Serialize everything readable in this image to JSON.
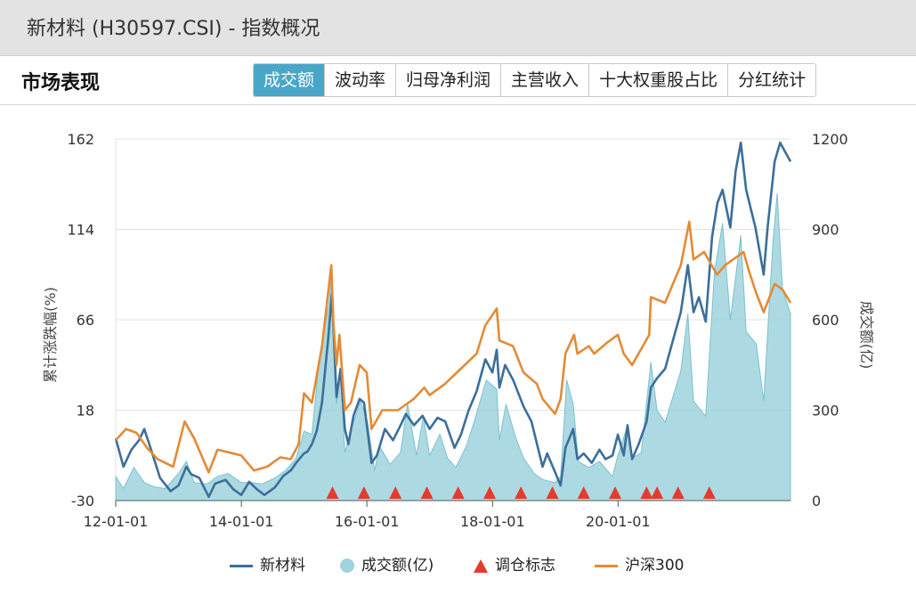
{
  "header": {
    "title": "新材料 (H30597.CSI) - 指数概况"
  },
  "section": {
    "title": "市场表现",
    "tabs": [
      {
        "label": "成交额",
        "active": true
      },
      {
        "label": "波动率",
        "active": false
      },
      {
        "label": "归母净利润",
        "active": false
      },
      {
        "label": "主营收入",
        "active": false
      },
      {
        "label": "十大权重股占比",
        "active": false
      },
      {
        "label": "分红统计",
        "active": false
      }
    ]
  },
  "colors": {
    "index": "#3b6f9a",
    "hs300": "#e38b36",
    "volume": "#9fd3dd",
    "volume_line": "#7cc0cf",
    "marker": "#e33b2d",
    "active_tab": "#4aa6c8"
  },
  "chart_data": {
    "type": "line",
    "x_range": [
      "2012-01-01",
      "2022-09-30"
    ],
    "x_ticks": [
      "12-01-01",
      "14-01-01",
      "16-01-01",
      "18-01-01",
      "20-01-01"
    ],
    "y_left": {
      "label": "累计涨跌幅(%)",
      "ticks": [
        -30,
        18,
        66,
        114,
        162
      ],
      "range": [
        -30,
        162
      ]
    },
    "y_right": {
      "label": "成交额(亿)",
      "ticks": [
        0,
        300,
        600,
        900,
        1200
      ],
      "range": [
        0,
        1200
      ]
    },
    "series": [
      {
        "name": "新材料",
        "kind": "line",
        "axis": "left",
        "color_key": "index",
        "points": [
          [
            "2012-01-01",
            3
          ],
          [
            "2012-02-15",
            -12
          ],
          [
            "2012-04-01",
            -3
          ],
          [
            "2012-05-15",
            2
          ],
          [
            "2012-06-15",
            8
          ],
          [
            "2012-08-01",
            -5
          ],
          [
            "2012-09-15",
            -18
          ],
          [
            "2012-11-15",
            -25
          ],
          [
            "2012-12-31",
            -22
          ],
          [
            "2013-02-15",
            -12
          ],
          [
            "2013-03-15",
            -16
          ],
          [
            "2013-05-01",
            -18
          ],
          [
            "2013-06-25",
            -28
          ],
          [
            "2013-08-01",
            -21
          ],
          [
            "2013-10-01",
            -19
          ],
          [
            "2013-11-15",
            -24
          ],
          [
            "2013-12-31",
            -27
          ],
          [
            "2014-02-15",
            -20
          ],
          [
            "2014-04-01",
            -24
          ],
          [
            "2014-05-15",
            -27
          ],
          [
            "2014-07-15",
            -23
          ],
          [
            "2014-09-01",
            -17
          ],
          [
            "2014-10-15",
            -14
          ],
          [
            "2014-11-15",
            -10
          ],
          [
            "2014-12-31",
            -5
          ],
          [
            "2015-01-20",
            -4
          ],
          [
            "2015-02-15",
            0
          ],
          [
            "2015-03-15",
            7
          ],
          [
            "2015-04-15",
            22
          ],
          [
            "2015-05-20",
            55
          ],
          [
            "2015-06-12",
            80
          ],
          [
            "2015-07-08",
            25
          ],
          [
            "2015-08-01",
            40
          ],
          [
            "2015-08-26",
            8
          ],
          [
            "2015-09-15",
            0
          ],
          [
            "2015-10-15",
            15
          ],
          [
            "2015-11-20",
            24
          ],
          [
            "2015-12-15",
            22
          ],
          [
            "2016-01-28",
            -10
          ],
          [
            "2016-02-28",
            -6
          ],
          [
            "2016-04-15",
            8
          ],
          [
            "2016-06-01",
            2
          ],
          [
            "2016-07-15",
            10
          ],
          [
            "2016-08-15",
            16
          ],
          [
            "2016-10-01",
            10
          ],
          [
            "2016-11-20",
            15
          ],
          [
            "2016-12-31",
            8
          ],
          [
            "2017-02-15",
            14
          ],
          [
            "2017-04-01",
            12
          ],
          [
            "2017-05-25",
            -2
          ],
          [
            "2017-07-01",
            5
          ],
          [
            "2017-08-15",
            18
          ],
          [
            "2017-09-30",
            28
          ],
          [
            "2017-11-20",
            45
          ],
          [
            "2017-12-31",
            38
          ],
          [
            "2018-01-25",
            50
          ],
          [
            "2018-02-10",
            30
          ],
          [
            "2018-03-15",
            42
          ],
          [
            "2018-05-01",
            34
          ],
          [
            "2018-06-30",
            20
          ],
          [
            "2018-08-15",
            12
          ],
          [
            "2018-10-19",
            -12
          ],
          [
            "2018-11-15",
            -5
          ],
          [
            "2018-12-31",
            -15
          ],
          [
            "2019-02-01",
            -22
          ],
          [
            "2019-03-01",
            -2
          ],
          [
            "2019-04-15",
            8
          ],
          [
            "2019-05-10",
            -8
          ],
          [
            "2019-06-15",
            -5
          ],
          [
            "2019-08-01",
            -10
          ],
          [
            "2019-09-15",
            -3
          ],
          [
            "2019-10-20",
            -8
          ],
          [
            "2019-11-30",
            -6
          ],
          [
            "2019-12-31",
            5
          ],
          [
            "2020-02-03",
            -6
          ],
          [
            "2020-02-25",
            10
          ],
          [
            "2020-03-23",
            -8
          ],
          [
            "2020-04-30",
            0
          ],
          [
            "2020-06-15",
            12
          ],
          [
            "2020-07-10",
            30
          ],
          [
            "2020-08-15",
            35
          ],
          [
            "2020-10-01",
            40
          ],
          [
            "2020-11-15",
            55
          ],
          [
            "2020-12-31",
            70
          ],
          [
            "2021-02-10",
            95
          ],
          [
            "2021-03-15",
            70
          ],
          [
            "2021-04-15",
            78
          ],
          [
            "2021-05-25",
            65
          ],
          [
            "2021-07-01",
            110
          ],
          [
            "2021-08-01",
            128
          ],
          [
            "2021-08-31",
            135
          ],
          [
            "2021-10-15",
            115
          ],
          [
            "2021-11-15",
            145
          ],
          [
            "2021-12-15",
            160
          ],
          [
            "2022-01-15",
            135
          ],
          [
            "2022-03-10",
            115
          ],
          [
            "2022-04-27",
            90
          ],
          [
            "2022-05-20",
            115
          ],
          [
            "2022-06-30",
            150
          ],
          [
            "2022-08-01",
            160
          ],
          [
            "2022-09-30",
            150
          ]
        ]
      },
      {
        "name": "沪深300",
        "kind": "line",
        "axis": "left",
        "color_key": "hs300",
        "points": [
          [
            "2012-01-01",
            2
          ],
          [
            "2012-03-01",
            8
          ],
          [
            "2012-05-01",
            6
          ],
          [
            "2012-07-01",
            -2
          ],
          [
            "2012-09-01",
            -8
          ],
          [
            "2012-11-30",
            -12
          ],
          [
            "2013-02-05",
            12
          ],
          [
            "2013-04-01",
            3
          ],
          [
            "2013-06-25",
            -15
          ],
          [
            "2013-08-15",
            -3
          ],
          [
            "2013-10-01",
            -4
          ],
          [
            "2013-12-31",
            -6
          ],
          [
            "2014-03-15",
            -14
          ],
          [
            "2014-06-01",
            -12
          ],
          [
            "2014-08-15",
            -7
          ],
          [
            "2014-10-15",
            -8
          ],
          [
            "2014-11-30",
            0
          ],
          [
            "2014-12-31",
            27
          ],
          [
            "2015-02-15",
            22
          ],
          [
            "2015-04-15",
            52
          ],
          [
            "2015-06-08",
            95
          ],
          [
            "2015-06-20",
            65
          ],
          [
            "2015-07-08",
            42
          ],
          [
            "2015-07-25",
            58
          ],
          [
            "2015-08-26",
            18
          ],
          [
            "2015-09-30",
            22
          ],
          [
            "2015-11-20",
            42
          ],
          [
            "2015-12-31",
            38
          ],
          [
            "2016-01-28",
            8
          ],
          [
            "2016-03-31",
            18
          ],
          [
            "2016-06-30",
            18
          ],
          [
            "2016-09-30",
            24
          ],
          [
            "2016-11-30",
            30
          ],
          [
            "2016-12-31",
            26
          ],
          [
            "2017-03-31",
            32
          ],
          [
            "2017-06-30",
            40
          ],
          [
            "2017-09-30",
            48
          ],
          [
            "2017-11-20",
            63
          ],
          [
            "2018-01-25",
            72
          ],
          [
            "2018-02-10",
            55
          ],
          [
            "2018-04-30",
            52
          ],
          [
            "2018-06-30",
            38
          ],
          [
            "2018-09-15",
            32
          ],
          [
            "2018-10-19",
            24
          ],
          [
            "2018-12-31",
            16
          ],
          [
            "2019-02-01",
            24
          ],
          [
            "2019-03-01",
            48
          ],
          [
            "2019-04-20",
            58
          ],
          [
            "2019-05-10",
            48
          ],
          [
            "2019-07-15",
            52
          ],
          [
            "2019-08-15",
            48
          ],
          [
            "2019-10-31",
            54
          ],
          [
            "2019-12-31",
            58
          ],
          [
            "2020-02-03",
            48
          ],
          [
            "2020-03-23",
            42
          ],
          [
            "2020-06-30",
            58
          ],
          [
            "2020-07-10",
            78
          ],
          [
            "2020-09-30",
            75
          ],
          [
            "2020-12-31",
            95
          ],
          [
            "2021-02-18",
            118
          ],
          [
            "2021-03-15",
            98
          ],
          [
            "2021-05-15",
            102
          ],
          [
            "2021-07-30",
            90
          ],
          [
            "2021-09-15",
            95
          ],
          [
            "2021-12-31",
            102
          ],
          [
            "2022-01-31",
            92
          ],
          [
            "2022-03-15",
            80
          ],
          [
            "2022-04-27",
            70
          ],
          [
            "2022-06-30",
            85
          ],
          [
            "2022-08-15",
            82
          ],
          [
            "2022-09-30",
            75
          ]
        ]
      },
      {
        "name": "成交额(亿)",
        "kind": "area",
        "axis": "right",
        "color_key": "volume",
        "points": [
          [
            "2012-01-01",
            80
          ],
          [
            "2012-02-15",
            40
          ],
          [
            "2012-04-15",
            110
          ],
          [
            "2012-06-15",
            60
          ],
          [
            "2012-08-15",
            45
          ],
          [
            "2012-10-15",
            40
          ],
          [
            "2012-12-31",
            90
          ],
          [
            "2013-02-15",
            130
          ],
          [
            "2013-04-01",
            60
          ],
          [
            "2013-06-15",
            55
          ],
          [
            "2013-08-15",
            80
          ],
          [
            "2013-10-15",
            90
          ],
          [
            "2013-12-31",
            60
          ],
          [
            "2014-03-01",
            60
          ],
          [
            "2014-05-01",
            55
          ],
          [
            "2014-07-15",
            75
          ],
          [
            "2014-09-15",
            100
          ],
          [
            "2014-11-15",
            140
          ],
          [
            "2014-12-31",
            230
          ],
          [
            "2015-02-15",
            220
          ],
          [
            "2015-04-01",
            480
          ],
          [
            "2015-05-25",
            650
          ],
          [
            "2015-06-12",
            760
          ],
          [
            "2015-07-08",
            320
          ],
          [
            "2015-08-01",
            420
          ],
          [
            "2015-08-26",
            160
          ],
          [
            "2015-10-15",
            260
          ],
          [
            "2015-11-25",
            330
          ],
          [
            "2016-01-05",
            260
          ],
          [
            "2016-02-15",
            100
          ],
          [
            "2016-03-15",
            180
          ],
          [
            "2016-05-15",
            120
          ],
          [
            "2016-07-15",
            160
          ],
          [
            "2016-08-25",
            320
          ],
          [
            "2016-10-15",
            150
          ],
          [
            "2016-11-25",
            280
          ],
          [
            "2016-12-31",
            150
          ],
          [
            "2017-03-01",
            220
          ],
          [
            "2017-04-15",
            140
          ],
          [
            "2017-06-01",
            110
          ],
          [
            "2017-08-01",
            180
          ],
          [
            "2017-09-15",
            260
          ],
          [
            "2017-11-25",
            400
          ],
          [
            "2018-01-25",
            370
          ],
          [
            "2018-02-10",
            200
          ],
          [
            "2018-03-20",
            320
          ],
          [
            "2018-05-15",
            210
          ],
          [
            "2018-07-01",
            140
          ],
          [
            "2018-09-01",
            90
          ],
          [
            "2018-10-19",
            70
          ],
          [
            "2018-12-31",
            60
          ],
          [
            "2019-02-01",
            80
          ],
          [
            "2019-03-08",
            400
          ],
          [
            "2019-04-15",
            320
          ],
          [
            "2019-05-15",
            130
          ],
          [
            "2019-07-15",
            110
          ],
          [
            "2019-09-15",
            130
          ],
          [
            "2019-11-30",
            80
          ],
          [
            "2019-12-31",
            150
          ],
          [
            "2020-02-20",
            240
          ],
          [
            "2020-03-23",
            140
          ],
          [
            "2020-05-15",
            160
          ],
          [
            "2020-07-10",
            460
          ],
          [
            "2020-08-15",
            300
          ],
          [
            "2020-10-01",
            260
          ],
          [
            "2020-12-31",
            430
          ],
          [
            "2021-02-10",
            620
          ],
          [
            "2021-03-15",
            330
          ],
          [
            "2021-05-25",
            280
          ],
          [
            "2021-07-15",
            760
          ],
          [
            "2021-08-31",
            920
          ],
          [
            "2021-10-15",
            600
          ],
          [
            "2021-12-15",
            880
          ],
          [
            "2022-01-15",
            560
          ],
          [
            "2022-03-15",
            520
          ],
          [
            "2022-04-27",
            330
          ],
          [
            "2022-06-20",
            860
          ],
          [
            "2022-07-15",
            1020
          ],
          [
            "2022-08-15",
            700
          ],
          [
            "2022-09-30",
            620
          ]
        ]
      }
    ],
    "rebalance_markers": [
      "2015-06-15",
      "2015-12-15",
      "2016-06-15",
      "2016-12-15",
      "2017-06-15",
      "2017-12-15",
      "2018-06-15",
      "2018-12-15",
      "2019-06-15",
      "2019-12-15",
      "2020-06-15",
      "2020-08-15",
      "2020-12-15",
      "2021-06-15"
    ],
    "legend": [
      {
        "label": "新材料",
        "kind": "line",
        "color_key": "index"
      },
      {
        "label": "成交额(亿)",
        "kind": "dot",
        "color_key": "volume"
      },
      {
        "label": "调仓标志",
        "kind": "triangle",
        "color_key": "marker"
      },
      {
        "label": "沪深300",
        "kind": "line",
        "color_key": "hs300"
      }
    ]
  }
}
